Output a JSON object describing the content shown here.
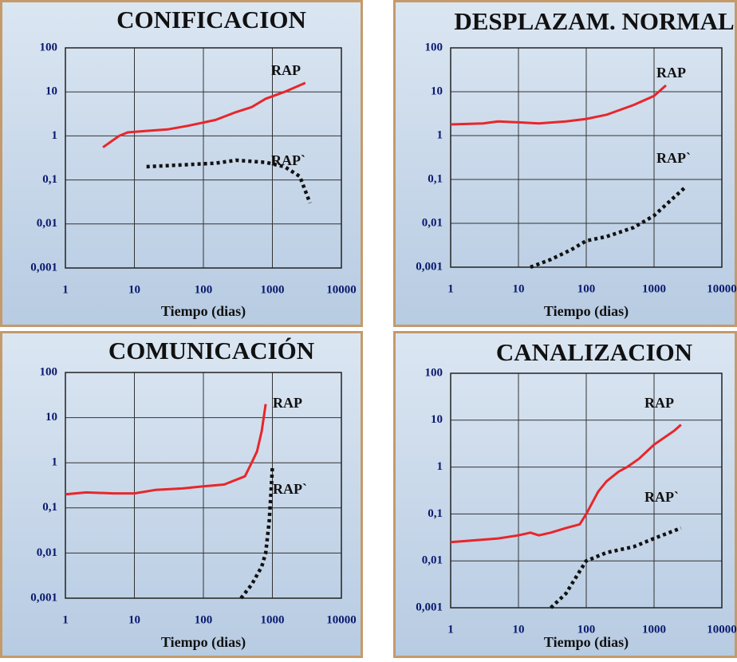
{
  "chart_data": [
    {
      "type": "line",
      "title": "CONIFICACION",
      "xlabel": "Tiempo (dias)",
      "xscale": "log",
      "yscale": "log",
      "grid": true,
      "xlim": [
        1,
        10000
      ],
      "ylim": [
        0.001,
        100
      ],
      "xticks": [
        1,
        10,
        100,
        1000,
        10000
      ],
      "yticks": [
        100,
        10,
        1,
        {
          "value": 0.1,
          "label": "0,1"
        },
        {
          "value": 0.01,
          "label": "0,01"
        },
        {
          "value": 0.001,
          "label": "0,001"
        }
      ],
      "series": [
        {
          "name": "RAP",
          "color": "#e8262a",
          "x": [
            3.5,
            6,
            8,
            15,
            30,
            60,
            150,
            300,
            500,
            800,
            1500,
            3000
          ],
          "values": [
            0.55,
            1.0,
            1.2,
            1.3,
            1.4,
            1.7,
            2.3,
            3.5,
            4.5,
            7,
            10,
            16
          ]
        },
        {
          "name": "RAP`",
          "color": "#111111",
          "x": [
            15,
            50,
            150,
            300,
            800,
            1500,
            2500,
            3500
          ],
          "values": [
            0.2,
            0.22,
            0.24,
            0.28,
            0.25,
            0.2,
            0.12,
            0.03
          ]
        }
      ]
    },
    {
      "type": "line",
      "title": "DESPLAZAM. NORMAL",
      "xlabel": "Tiempo (dias)",
      "xscale": "log",
      "yscale": "log",
      "grid": true,
      "xlim": [
        1,
        10000
      ],
      "ylim": [
        0.001,
        100
      ],
      "xticks": [
        1,
        10,
        100,
        1000,
        10000
      ],
      "yticks": [
        100,
        10,
        1,
        {
          "value": 0.1,
          "label": "0,1"
        },
        {
          "value": 0.01,
          "label": "0,01"
        },
        {
          "value": 0.001,
          "label": "0,001"
        }
      ],
      "series": [
        {
          "name": "RAP",
          "color": "#e8262a",
          "x": [
            1,
            3,
            5,
            10,
            20,
            50,
            100,
            200,
            500,
            1000,
            1500
          ],
          "values": [
            1.8,
            1.9,
            2.1,
            2.0,
            1.9,
            2.1,
            2.4,
            3,
            5,
            8,
            14
          ]
        },
        {
          "name": "RAP`",
          "color": "#111111",
          "x": [
            15,
            30,
            60,
            100,
            200,
            500,
            1000,
            2000,
            3000
          ],
          "values": [
            0.001,
            0.0015,
            0.0025,
            0.004,
            0.005,
            0.008,
            0.015,
            0.04,
            0.07
          ]
        }
      ]
    },
    {
      "type": "line",
      "title": "COMUNICACIÓN",
      "xlabel": "Tiempo (dias)",
      "xscale": "log",
      "yscale": "log",
      "grid": true,
      "xlim": [
        1,
        10000
      ],
      "ylim": [
        0.001,
        100
      ],
      "xticks": [
        1,
        10,
        100,
        1000,
        10000
      ],
      "yticks": [
        100,
        10,
        1,
        {
          "value": 0.1,
          "label": "0,1"
        },
        {
          "value": 0.01,
          "label": "0,01"
        },
        {
          "value": 0.001,
          "label": "0,001"
        }
      ],
      "series": [
        {
          "name": "RAP",
          "color": "#e8262a",
          "x": [
            1,
            2,
            5,
            10,
            20,
            50,
            100,
            200,
            400,
            500,
            600,
            700,
            800
          ],
          "values": [
            0.2,
            0.22,
            0.21,
            0.21,
            0.25,
            0.27,
            0.3,
            0.33,
            0.5,
            1.0,
            1.8,
            5,
            20
          ]
        },
        {
          "name": "RAP`",
          "color": "#111111",
          "x": [
            350,
            500,
            700,
            800,
            900,
            950,
            1000
          ],
          "values": [
            0.001,
            0.002,
            0.005,
            0.01,
            0.05,
            0.2,
            0.8
          ]
        }
      ]
    },
    {
      "type": "line",
      "title": "CANALIZACION",
      "xlabel": "Tiempo (dias)",
      "xscale": "log",
      "yscale": "log",
      "grid": true,
      "xlim": [
        1,
        10000
      ],
      "ylim": [
        0.001,
        100
      ],
      "xticks": [
        1,
        10,
        100,
        1000,
        10000
      ],
      "yticks": [
        100,
        10,
        1,
        {
          "value": 0.1,
          "label": "0,1"
        },
        {
          "value": 0.01,
          "label": "0,01"
        },
        {
          "value": 0.001,
          "label": "0,001"
        }
      ],
      "series": [
        {
          "name": "RAP",
          "color": "#e8262a",
          "x": [
            1,
            5,
            10,
            15,
            20,
            30,
            50,
            80,
            100,
            150,
            200,
            300,
            400,
            600,
            1000,
            2000,
            2500
          ],
          "values": [
            0.025,
            0.03,
            0.035,
            0.04,
            0.035,
            0.04,
            0.05,
            0.06,
            0.1,
            0.3,
            0.5,
            0.8,
            1,
            1.5,
            3,
            6,
            8
          ]
        },
        {
          "name": "RAP`",
          "color": "#111111",
          "x": [
            30,
            50,
            80,
            100,
            200,
            500,
            1000,
            2500
          ],
          "values": [
            0.001,
            0.002,
            0.006,
            0.01,
            0.015,
            0.02,
            0.03,
            0.05
          ]
        }
      ]
    }
  ]
}
